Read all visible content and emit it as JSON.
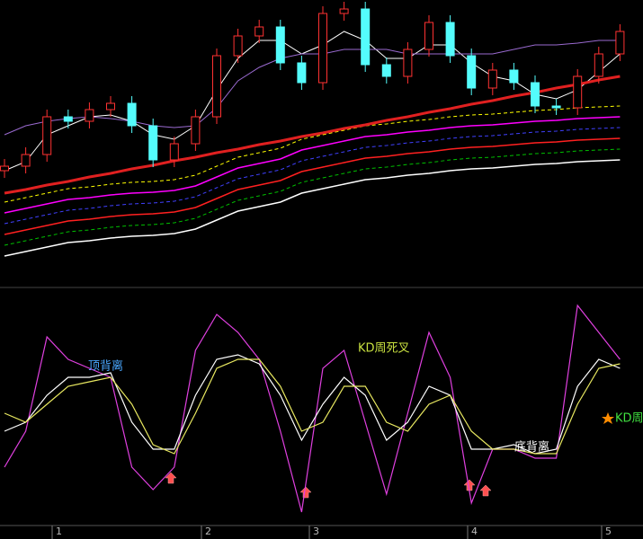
{
  "chart_data": [
    {
      "type": "candlestick",
      "ylim": [
        0,
        300
      ],
      "up_color": "#ff3232",
      "down_color": "#54fcfc",
      "open": [
        110,
        115,
        128,
        170,
        165,
        178,
        185,
        160,
        122,
        140,
        170,
        238,
        260,
        270,
        230,
        208,
        285,
        290,
        228,
        215,
        245,
        275,
        238,
        202,
        222,
        208,
        182,
        180,
        215,
        240
      ],
      "close": [
        115,
        128,
        170,
        165,
        178,
        185,
        160,
        122,
        140,
        170,
        238,
        260,
        270,
        230,
        208,
        285,
        290,
        228,
        215,
        245,
        275,
        238,
        202,
        222,
        208,
        182,
        180,
        215,
        240,
        265
      ],
      "high": [
        123,
        136,
        178,
        178,
        186,
        193,
        193,
        168,
        148,
        178,
        246,
        268,
        278,
        278,
        238,
        293,
        298,
        298,
        236,
        253,
        283,
        283,
        246,
        230,
        230,
        216,
        190,
        223,
        248,
        273
      ],
      "low": [
        102,
        107,
        120,
        157,
        157,
        170,
        152,
        114,
        114,
        132,
        162,
        230,
        252,
        222,
        200,
        200,
        277,
        220,
        207,
        207,
        237,
        230,
        194,
        194,
        200,
        174,
        172,
        172,
        207,
        232
      ],
      "series": [
        {
          "color": "#ffffff",
          "width": 1,
          "dashed": false,
          "values": [
            110,
            120,
            150,
            160,
            170,
            172,
            165,
            150,
            145,
            160,
            200,
            235,
            255,
            255,
            240,
            250,
            265,
            255,
            235,
            235,
            250,
            250,
            230,
            215,
            210,
            195,
            190,
            200,
            220,
            240
          ]
        },
        {
          "color": "#9a6ad0",
          "width": 1,
          "dashed": false,
          "values": [
            150,
            160,
            165,
            168,
            170,
            168,
            165,
            160,
            158,
            160,
            180,
            210,
            225,
            235,
            240,
            240,
            245,
            245,
            245,
            240,
            240,
            240,
            240,
            240,
            245,
            250,
            250,
            252,
            255,
            255
          ]
        },
        {
          "color": "#ffff00",
          "width": 1,
          "dashed": true,
          "values": [
            75,
            80,
            85,
            90,
            92,
            95,
            97,
            98,
            100,
            105,
            115,
            125,
            130,
            135,
            145,
            150,
            155,
            160,
            162,
            165,
            167,
            170,
            172,
            173,
            175,
            177,
            178,
            180,
            181,
            182
          ]
        },
        {
          "color": "#ff00ff",
          "width": 1.5,
          "dashed": false,
          "values": [
            63,
            68,
            73,
            78,
            80,
            83,
            85,
            86,
            88,
            93,
            103,
            113,
            118,
            123,
            133,
            138,
            143,
            148,
            150,
            153,
            155,
            158,
            160,
            161,
            163,
            165,
            166,
            168,
            169,
            170
          ]
        },
        {
          "color": "#4040ff",
          "width": 1,
          "dashed": true,
          "values": [
            51,
            56,
            61,
            66,
            68,
            71,
            73,
            74,
            76,
            81,
            91,
            101,
            106,
            111,
            121,
            126,
            131,
            136,
            138,
            141,
            143,
            146,
            148,
            149,
            151,
            153,
            154,
            156,
            157,
            158
          ]
        },
        {
          "color": "#ff2020",
          "width": 1.5,
          "dashed": false,
          "values": [
            39,
            44,
            49,
            54,
            56,
            59,
            61,
            62,
            64,
            69,
            79,
            89,
            94,
            99,
            109,
            114,
            119,
            124,
            126,
            129,
            131,
            134,
            136,
            137,
            139,
            141,
            142,
            144,
            145,
            146
          ]
        },
        {
          "color": "#00c000",
          "width": 1,
          "dashed": true,
          "values": [
            27,
            32,
            37,
            42,
            44,
            47,
            49,
            50,
            52,
            57,
            67,
            77,
            82,
            87,
            97,
            102,
            107,
            112,
            114,
            117,
            119,
            122,
            124,
            125,
            127,
            129,
            130,
            132,
            133,
            134
          ]
        },
        {
          "color": "#ffffff",
          "width": 1.5,
          "dashed": false,
          "values": [
            15,
            20,
            25,
            30,
            32,
            35,
            37,
            38,
            40,
            45,
            55,
            65,
            70,
            75,
            85,
            90,
            95,
            100,
            102,
            105,
            107,
            110,
            112,
            113,
            115,
            117,
            118,
            120,
            121,
            122
          ]
        },
        {
          "color": "#e02020",
          "width": 3,
          "dashed": false,
          "values": [
            85,
            89,
            94,
            98,
            103,
            107,
            112,
            116,
            121,
            125,
            130,
            134,
            139,
            143,
            148,
            152,
            157,
            161,
            166,
            170,
            175,
            179,
            184,
            188,
            193,
            197,
            202,
            206,
            211,
            215
          ]
        }
      ]
    },
    {
      "type": "line",
      "ylim": [
        0,
        260
      ],
      "series": [
        {
          "color": "#e040e0",
          "values": [
            70,
            110,
            215,
            190,
            180,
            170,
            70,
            45,
            70,
            200,
            240,
            220,
            190,
            110,
            20,
            180,
            200,
            120,
            40,
            130,
            220,
            170,
            30,
            90,
            90,
            80,
            80,
            250,
            220,
            190
          ]
        },
        {
          "color": "#ffffff",
          "values": [
            110,
            120,
            150,
            170,
            170,
            175,
            120,
            90,
            90,
            150,
            190,
            195,
            185,
            150,
            100,
            140,
            170,
            150,
            100,
            120,
            160,
            150,
            90,
            90,
            95,
            85,
            90,
            160,
            190,
            180
          ]
        },
        {
          "color": "#e8e860",
          "values": [
            130,
            120,
            140,
            160,
            165,
            170,
            140,
            95,
            85,
            130,
            180,
            190,
            190,
            160,
            110,
            120,
            160,
            160,
            120,
            110,
            140,
            150,
            110,
            90,
            90,
            85,
            85,
            140,
            180,
            185
          ]
        }
      ],
      "annotations": [
        {
          "text": "顶背离",
          "color": "#4aa8ff"
        },
        {
          "text": "KD周死叉",
          "color": "#c8e040"
        },
        {
          "text": "底背离",
          "color": "#ffffff"
        },
        {
          "text": "KD周金",
          "color": "#40e040"
        }
      ],
      "x_tick_labels": [
        "1",
        "2",
        "3",
        "4",
        "5"
      ]
    }
  ]
}
